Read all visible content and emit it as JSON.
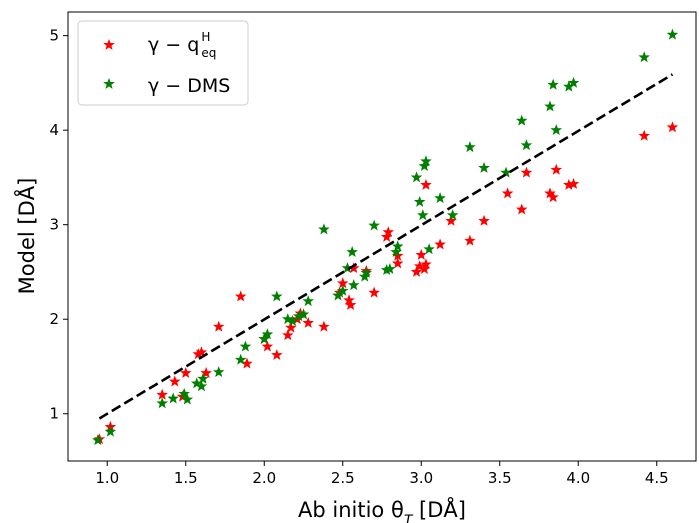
{
  "chart_data": {
    "type": "scatter",
    "xlabel": "Ab initio θ",
    "xlabel_sub": "T",
    "xlabel_unit": " [DÅ]",
    "ylabel": "Model [DÅ]",
    "xlim": [
      0.75,
      4.75
    ],
    "ylim": [
      0.5,
      5.25
    ],
    "xticks": [
      1.0,
      1.5,
      2.0,
      2.5,
      3.0,
      3.5,
      4.0,
      4.5
    ],
    "yticks": [
      1,
      2,
      3,
      4,
      5
    ],
    "xtick_labels": [
      "1.0",
      "1.5",
      "2.0",
      "2.5",
      "3.0",
      "3.5",
      "4.0",
      "4.5"
    ],
    "ytick_labels": [
      "1",
      "2",
      "3",
      "4",
      "5"
    ],
    "grid": false,
    "legend_position": "top-left",
    "marker": "star",
    "series": [
      {
        "name": "γ − q_eq^H",
        "legend_main": "γ − q",
        "legend_sup": "H",
        "legend_sub": "eq",
        "color": "#ff0000",
        "points": [
          [
            0.95,
            0.73
          ],
          [
            1.02,
            0.86
          ],
          [
            1.35,
            1.2
          ],
          [
            1.43,
            1.34
          ],
          [
            1.48,
            1.18
          ],
          [
            1.5,
            1.43
          ],
          [
            1.58,
            1.63
          ],
          [
            1.6,
            1.65
          ],
          [
            1.63,
            1.43
          ],
          [
            1.71,
            1.92
          ],
          [
            1.85,
            2.24
          ],
          [
            1.89,
            1.53
          ],
          [
            2.0,
            1.79
          ],
          [
            2.02,
            1.71
          ],
          [
            2.08,
            1.62
          ],
          [
            2.15,
            1.83
          ],
          [
            2.17,
            1.91
          ],
          [
            2.21,
            2.0
          ],
          [
            2.23,
            2.06
          ],
          [
            2.28,
            1.96
          ],
          [
            2.38,
            1.92
          ],
          [
            2.48,
            2.28
          ],
          [
            2.5,
            2.38
          ],
          [
            2.54,
            2.2
          ],
          [
            2.55,
            2.15
          ],
          [
            2.57,
            2.54
          ],
          [
            2.65,
            2.51
          ],
          [
            2.7,
            2.28
          ],
          [
            2.78,
            2.87
          ],
          [
            2.79,
            2.92
          ],
          [
            2.85,
            2.59
          ],
          [
            2.85,
            2.67
          ],
          [
            2.97,
            2.5
          ],
          [
            2.99,
            2.56
          ],
          [
            3.0,
            2.68
          ],
          [
            3.02,
            2.53
          ],
          [
            3.03,
            2.58
          ],
          [
            3.03,
            3.42
          ],
          [
            3.12,
            2.79
          ],
          [
            3.19,
            3.04
          ],
          [
            3.31,
            2.83
          ],
          [
            3.4,
            3.04
          ],
          [
            3.55,
            3.33
          ],
          [
            3.64,
            3.16
          ],
          [
            3.67,
            3.55
          ],
          [
            3.82,
            3.33
          ],
          [
            3.84,
            3.29
          ],
          [
            3.86,
            3.58
          ],
          [
            3.94,
            3.42
          ],
          [
            3.97,
            3.43
          ],
          [
            4.42,
            3.94
          ],
          [
            4.6,
            4.03
          ]
        ]
      },
      {
        "name": "γ − DMS",
        "legend_main": "γ − DMS",
        "color": "#008000",
        "points": [
          [
            0.94,
            0.72
          ],
          [
            1.02,
            0.81
          ],
          [
            1.35,
            1.11
          ],
          [
            1.42,
            1.16
          ],
          [
            1.49,
            1.21
          ],
          [
            1.51,
            1.15
          ],
          [
            1.57,
            1.32
          ],
          [
            1.6,
            1.29
          ],
          [
            1.61,
            1.37
          ],
          [
            1.71,
            1.44
          ],
          [
            1.85,
            1.57
          ],
          [
            1.88,
            1.71
          ],
          [
            2.0,
            1.79
          ],
          [
            2.02,
            1.84
          ],
          [
            2.08,
            2.24
          ],
          [
            2.15,
            2.0
          ],
          [
            2.18,
            1.98
          ],
          [
            2.22,
            2.03
          ],
          [
            2.25,
            2.05
          ],
          [
            2.28,
            2.19
          ],
          [
            2.38,
            2.95
          ],
          [
            2.47,
            2.25
          ],
          [
            2.5,
            2.3
          ],
          [
            2.53,
            2.54
          ],
          [
            2.56,
            2.71
          ],
          [
            2.57,
            2.36
          ],
          [
            2.64,
            2.45
          ],
          [
            2.65,
            2.49
          ],
          [
            2.7,
            2.99
          ],
          [
            2.78,
            2.52
          ],
          [
            2.8,
            2.53
          ],
          [
            2.84,
            2.71
          ],
          [
            2.85,
            2.77
          ],
          [
            2.97,
            3.5
          ],
          [
            2.99,
            3.24
          ],
          [
            3.01,
            3.1
          ],
          [
            3.02,
            3.62
          ],
          [
            3.03,
            3.67
          ],
          [
            3.05,
            2.74
          ],
          [
            3.12,
            3.28
          ],
          [
            3.2,
            3.1
          ],
          [
            3.31,
            3.82
          ],
          [
            3.4,
            3.6
          ],
          [
            3.54,
            3.55
          ],
          [
            3.64,
            4.1
          ],
          [
            3.67,
            3.84
          ],
          [
            3.82,
            4.25
          ],
          [
            3.84,
            4.48
          ],
          [
            3.86,
            4.0
          ],
          [
            3.94,
            4.46
          ],
          [
            3.97,
            4.5
          ],
          [
            4.42,
            4.77
          ],
          [
            4.6,
            5.01
          ]
        ]
      }
    ],
    "fit_line": {
      "style": "dashed",
      "color": "#000000",
      "from": [
        0.95,
        0.95
      ],
      "to": [
        4.6,
        4.59
      ]
    }
  }
}
